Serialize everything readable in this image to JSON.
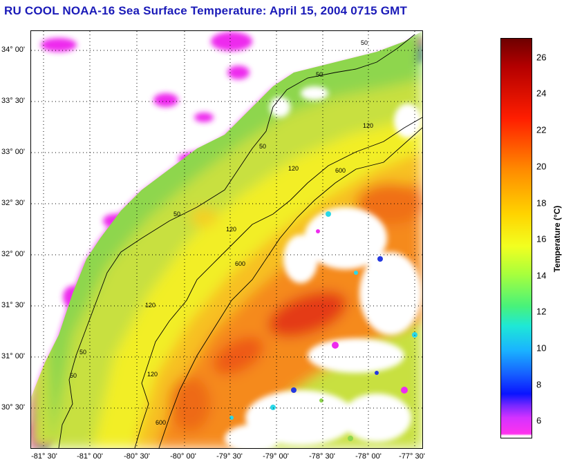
{
  "title": "RU COOL  NOAA-16  Sea Surface Temperature:  April 15, 2004 0715 GMT",
  "lat_labels": [
    "34° 00'",
    "33° 30'",
    "33° 00'",
    "32° 30'",
    "32° 00'",
    "31° 30'",
    "31° 00'",
    "30° 30'"
  ],
  "lon_labels": [
    "-81° 30'",
    "-81° 00'",
    "-80° 30'",
    "-80° 00'",
    "-79° 30'",
    "-79° 00'",
    "-78° 30'",
    "-78° 00'",
    "-77° 30'"
  ],
  "contour_labels": [
    "50",
    "50",
    "50",
    "50",
    "50",
    "50",
    "120",
    "120",
    "120",
    "120",
    "120",
    "600",
    "600",
    "600"
  ],
  "colorbar": {
    "label": "Temperature (°C)",
    "ticks": [
      "26",
      "24",
      "22",
      "20",
      "18",
      "16",
      "14",
      "12",
      "10",
      "8",
      "6"
    ],
    "range": [
      5,
      27
    ]
  },
  "palette": {
    "warm": "#e43a12",
    "orange": "#f58a1c",
    "yellow": "#f2ee28",
    "green": "#8ed64e",
    "cyan": "#2ad8e8",
    "blue": "#2438e0",
    "magenta": "#ee2aee",
    "land": "#ffffff",
    "title": "#1a1ab8"
  }
}
